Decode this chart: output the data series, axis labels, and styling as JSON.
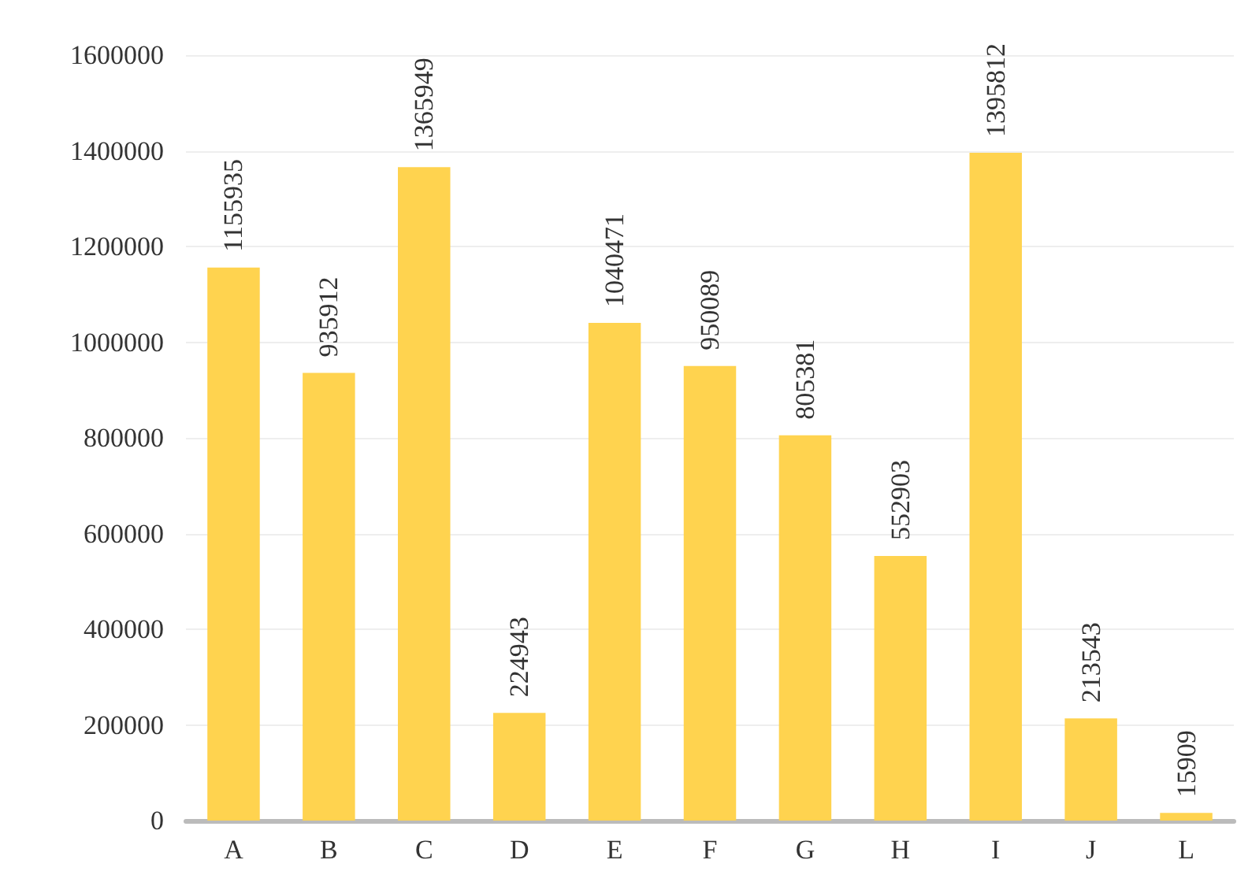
{
  "chart_data": {
    "type": "bar",
    "categories": [
      "A",
      "B",
      "C",
      "D",
      "E",
      "F",
      "G",
      "H",
      "I",
      "J",
      "L"
    ],
    "values": [
      1155935,
      935912,
      1365949,
      224943,
      1040471,
      950089,
      805381,
      552903,
      1395812,
      213543,
      15909
    ],
    "color": "#ffd34f",
    "ylim": [
      0,
      1600000
    ],
    "yticks": [
      0,
      200000,
      400000,
      600000,
      800000,
      1000000,
      1200000,
      1400000,
      1600000
    ],
    "grid": "y",
    "data_labels": true
  }
}
